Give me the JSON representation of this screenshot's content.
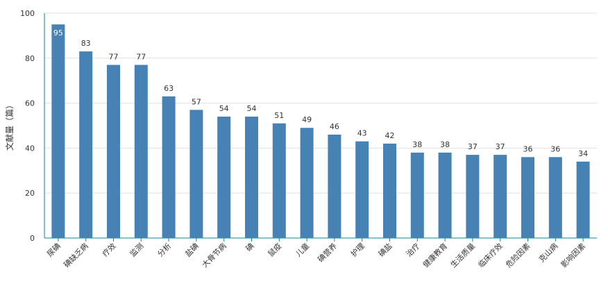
{
  "chart_data": {
    "type": "bar",
    "title": "",
    "xlabel": "",
    "ylabel": "文献量（篇）",
    "ylim": [
      0,
      100
    ],
    "yticks": [
      0,
      20,
      40,
      60,
      80,
      100
    ],
    "grid": true,
    "legend": "none",
    "bar_color": "#4682b4",
    "categories": [
      "尿碘",
      "碘缺乏病",
      "疗效",
      "监测",
      "分析",
      "盐碘",
      "大骨节病",
      "碘",
      "鼠疫",
      "儿童",
      "碘营养",
      "护理",
      "碘盐",
      "治疗",
      "健康教育",
      "生活质量",
      "临床疗效",
      "危险因素",
      "克山病",
      "影响因素"
    ],
    "values": [
      95,
      83,
      77,
      77,
      63,
      57,
      54,
      54,
      51,
      49,
      46,
      43,
      42,
      38,
      38,
      37,
      37,
      36,
      36,
      34
    ]
  }
}
